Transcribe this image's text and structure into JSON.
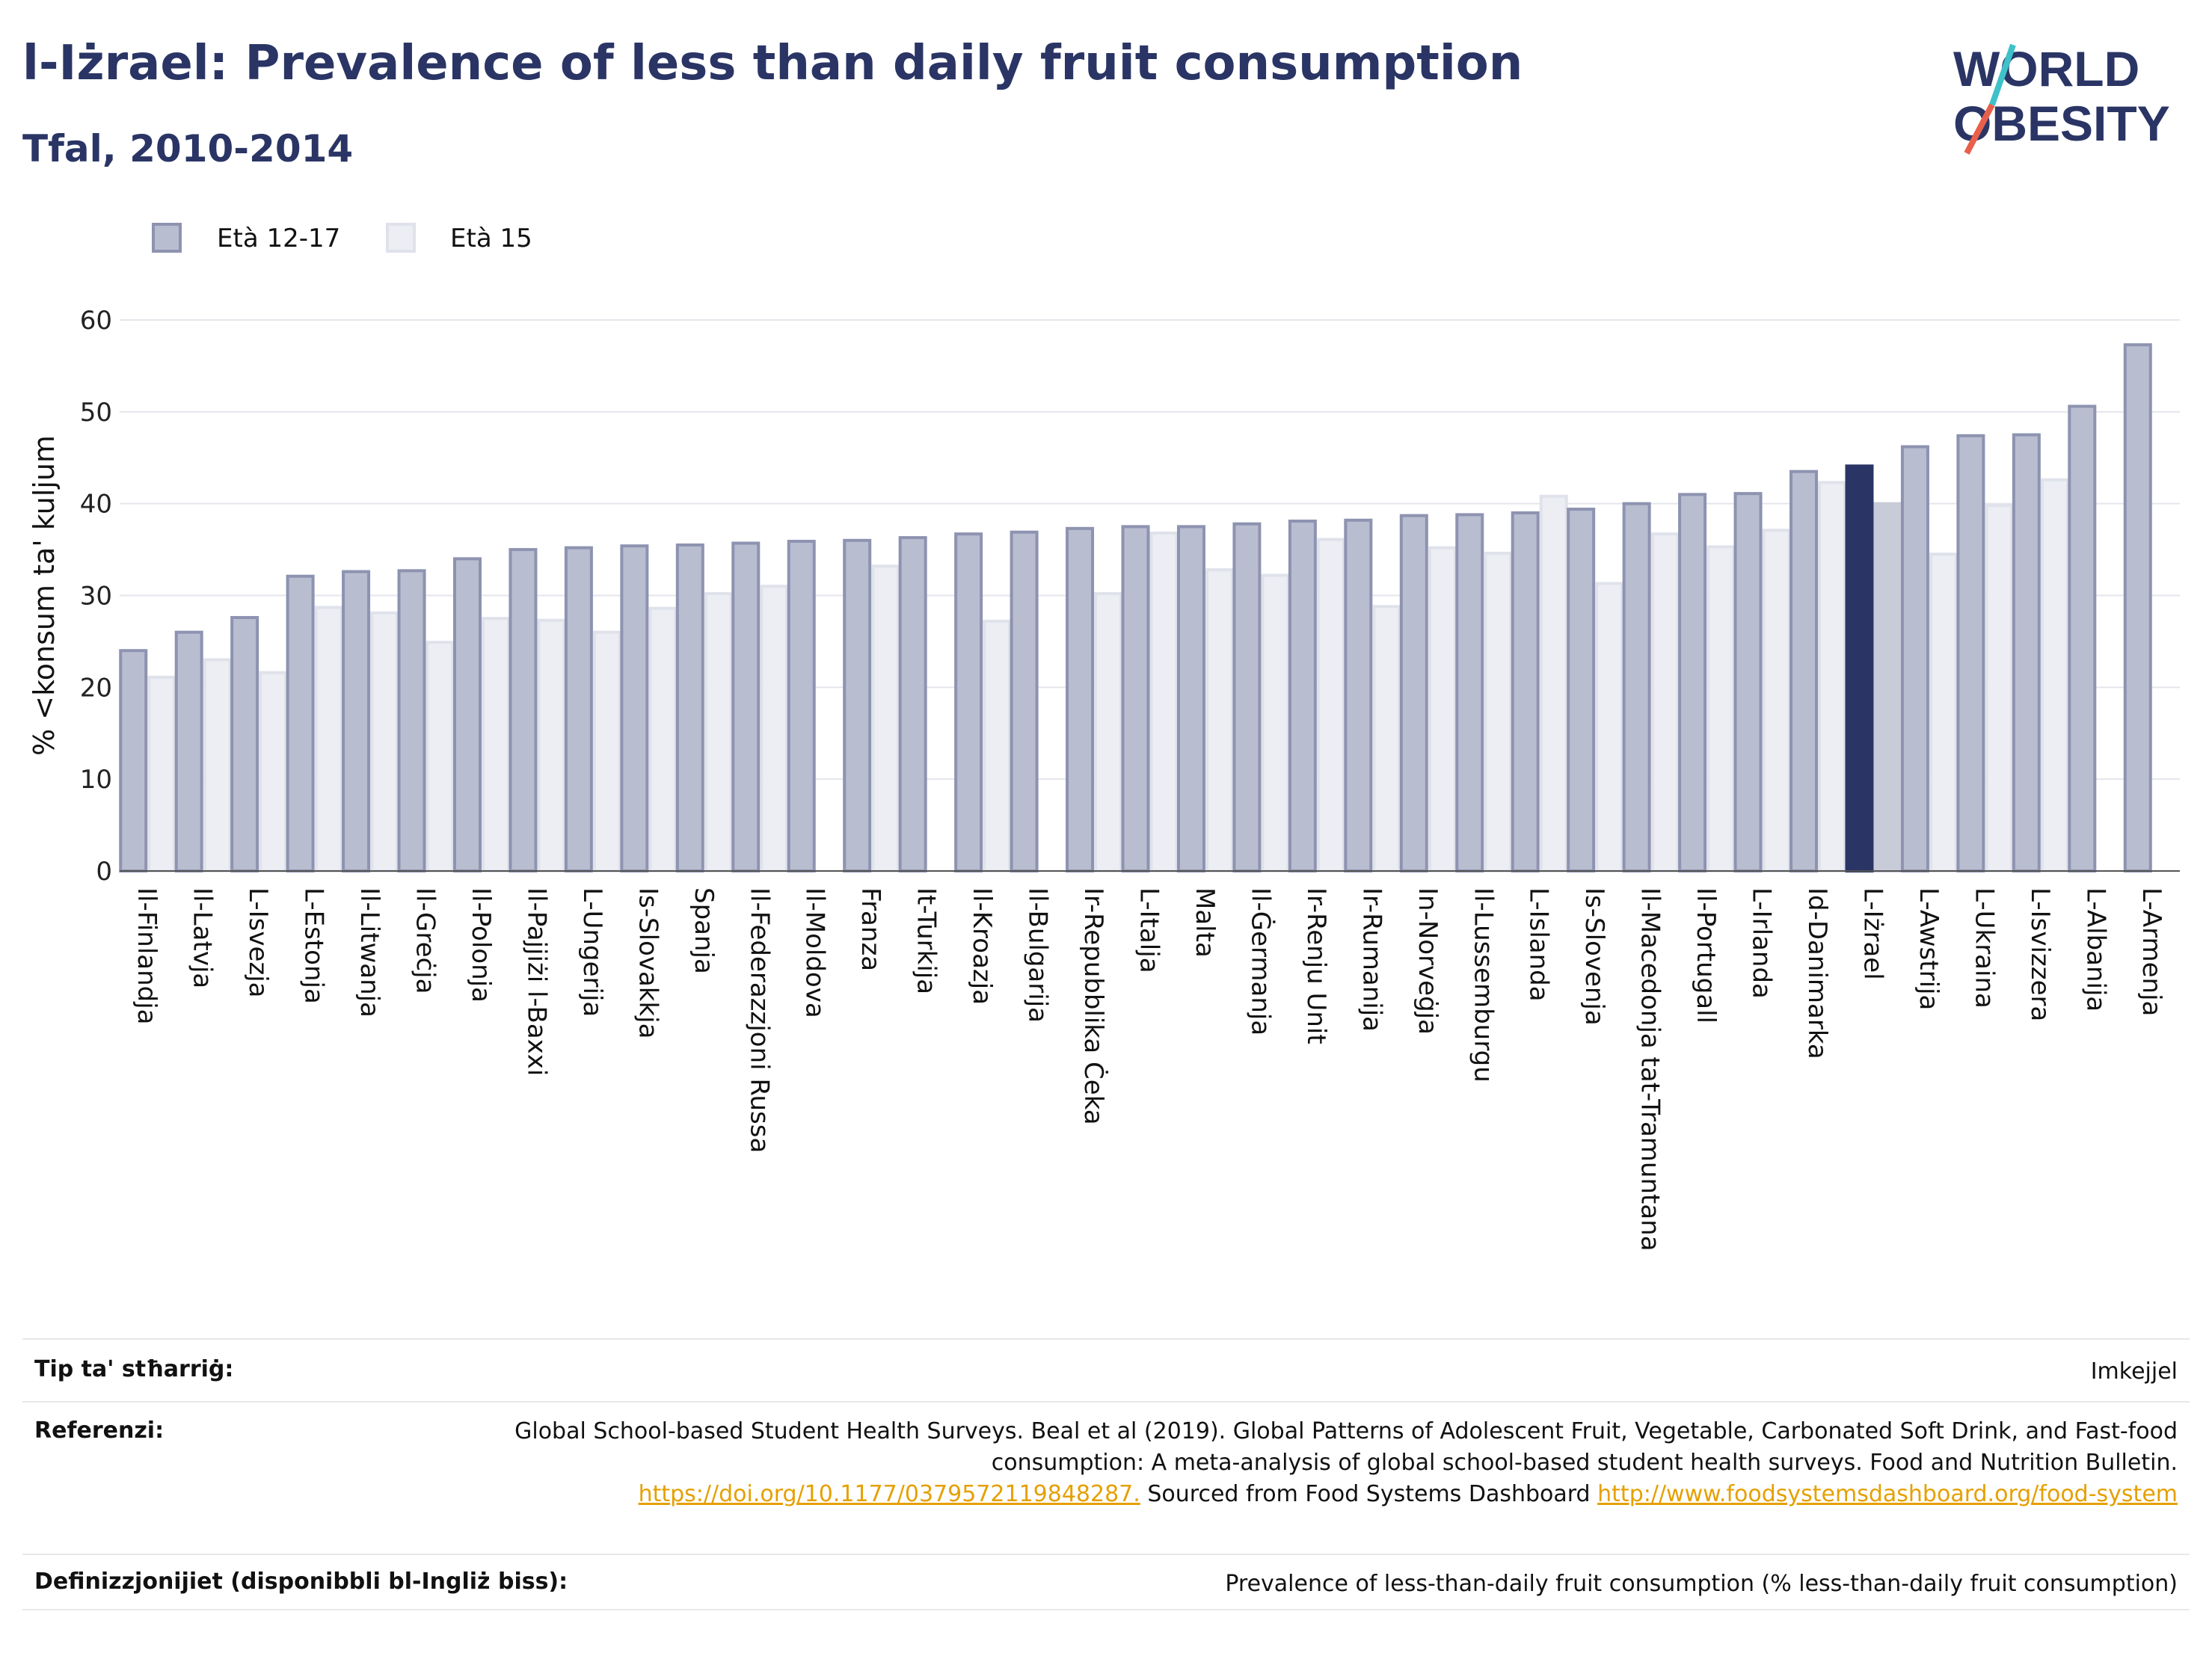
{
  "title": "l-Iżrael: Prevalence of less than daily fruit consumption",
  "subtitle": "Tfal, 2010-2014",
  "logo": {
    "line1": "WORLD",
    "line2": "OBESITY",
    "accent_teal": "#3fc1c9",
    "accent_red": "#e8604c",
    "color": "#2a3565"
  },
  "colors": {
    "series1": "#b9bdd0",
    "series1_stroke": "#8d93b0",
    "series2": "#eceef3",
    "highlight1": "#2a3565",
    "highlight2": "#c8cbd8"
  },
  "chart_data": {
    "type": "bar",
    "ylabel": "% <konsum ta' kuljum",
    "ylim": [
      0,
      60
    ],
    "yticks": [
      0,
      10,
      20,
      30,
      40,
      50,
      60
    ],
    "grid": true,
    "legend_position": "top-left",
    "highlight_category": "L-Iżrael",
    "categories": [
      "Il-Finlandja",
      "Il-Latvja",
      "L-Isvezja",
      "L-Estonja",
      "Il-Litwanja",
      "Il-Greċja",
      "Il-Polonja",
      "Il-Pajjiżi l-Baxxi",
      "L-Ungerija",
      "Is-Slovakkja",
      "Spanja",
      "Il-Federazzjoni Russa",
      "Il-Moldova",
      "Franza",
      "It-Turkija",
      "Il-Kroazja",
      "Il-Bulgarija",
      "Ir-Repubblika Ċeka",
      "L-Italja",
      "Malta",
      "Il-Ġermanja",
      "Ir-Renju Unit",
      "Ir-Rumanija",
      "In-Norveġja",
      "Il-Lussemburgu",
      "L-Islanda",
      "Is-Slovenja",
      "Il-Macedonja tat-Tramuntana",
      "Il-Portugall",
      "L-Irlanda",
      "Id-Danimarka",
      "L-Iżrael",
      "L-Awstrija",
      "L-Ukraina",
      "L-Isvizzera",
      "L-Albanija",
      "L-Armenja"
    ],
    "series": [
      {
        "name": "Età 12-17",
        "values": [
          24,
          26,
          27.6,
          32.1,
          32.6,
          32.7,
          34,
          35,
          35.2,
          35.4,
          35.5,
          35.7,
          35.9,
          36,
          36.3,
          36.7,
          36.9,
          37.3,
          37.5,
          37.5,
          37.8,
          38.1,
          38.2,
          38.7,
          38.8,
          39,
          39.4,
          40,
          41,
          41.1,
          43.5,
          44.1,
          46.2,
          47.4,
          47.5,
          50.6,
          57.3
        ]
      },
      {
        "name": "Età 15",
        "values": [
          21.1,
          23,
          21.6,
          28.7,
          28.1,
          24.9,
          27.5,
          27.3,
          26,
          28.6,
          30.2,
          31,
          null,
          33.2,
          null,
          27.2,
          null,
          30.2,
          36.8,
          32.8,
          32.2,
          36.1,
          28.8,
          35.2,
          34.6,
          40.8,
          31.3,
          36.7,
          35.3,
          37.1,
          42.3,
          40,
          34.5,
          39.8,
          42.6,
          null,
          null
        ]
      }
    ]
  },
  "info": {
    "type_label": "Tip ta' stħarriġ:",
    "type_value": "Imkejjel",
    "ref_label": "Referenzi:",
    "ref_text_1": "Global School-based Student Health Surveys. Beal et al (2019). Global Patterns of Adolescent Fruit, Vegetable, Carbonated Soft Drink, and Fast-food consumption: A meta-analysis of global school-based student health surveys. Food and Nutrition Bulletin.",
    "ref_link_1": "https://doi.org/10.1177/0379572119848287.",
    "ref_text_2": "Sourced from Food Systems Dashboard",
    "ref_link_2": "http://www.foodsystemsdashboard.org/food-system",
    "def_label": "Definizzjonijiet (disponibbli bl-Ingliż biss):",
    "def_value": "Prevalence of less-than-daily fruit consumption (% less-than-daily fruit consumption)"
  }
}
